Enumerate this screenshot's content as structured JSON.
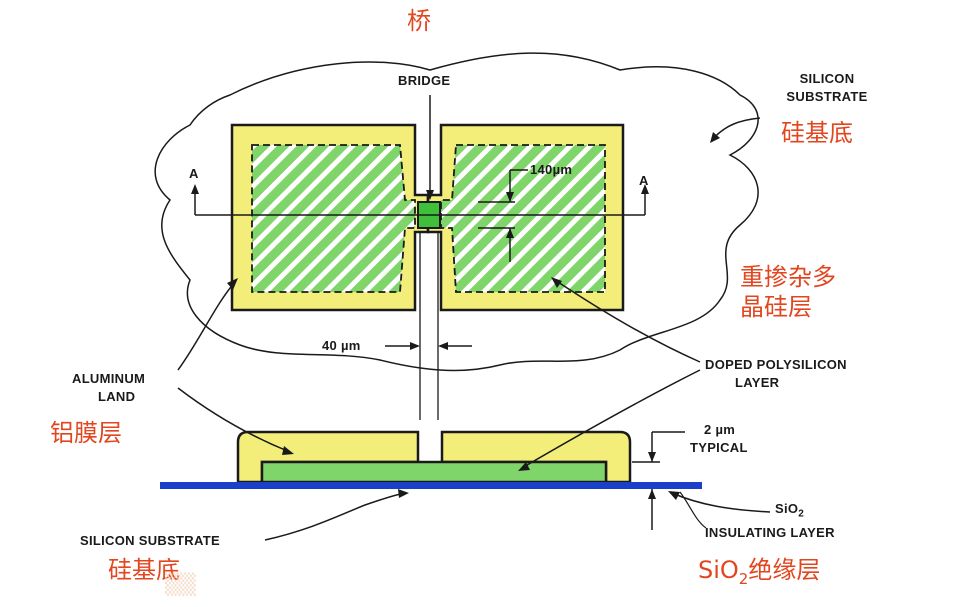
{
  "labels_en": {
    "bridge": "BRIDGE",
    "silicon_substrate_top_line1": "SILICON",
    "silicon_substrate_top_line2": "SUBSTRATE",
    "section_a_left": "A",
    "section_a_right": "A",
    "dim_140": "140µm",
    "dim_40": "40 µm",
    "aluminum_land_line1": "ALUMINUM",
    "aluminum_land_line2": "LAND",
    "doped_poly_line1": "DOPED POLYSILICON",
    "doped_poly_line2": "LAYER",
    "typical_line1": "2 µm",
    "typical_line2": "TYPICAL",
    "sio2_line1": "SiO",
    "sio2_sub": "2",
    "sio2_line2": "INSULATING LAYER",
    "silicon_substrate_bottom": "SILICON SUBSTRATE"
  },
  "labels_cn": {
    "bridge": "桥",
    "silicon_substrate_top": "硅基底",
    "doped_poly_line1": "重掺杂多",
    "doped_poly_line2": "晶硅层",
    "aluminum_film": "铝膜层",
    "silicon_substrate_bottom": "硅基底",
    "sio2_prefix": "SiO",
    "sio2_sub": "2",
    "sio2_suffix": "绝缘层"
  },
  "colors": {
    "aluminum": "#f3ee7a",
    "polysilicon": "#7fd56a",
    "bridge": "#3fbf3a",
    "sio2": "#1a3fc9",
    "outline": "#1a1a1a",
    "cn_text": "#e2461f",
    "hatch": "#ffffff"
  }
}
